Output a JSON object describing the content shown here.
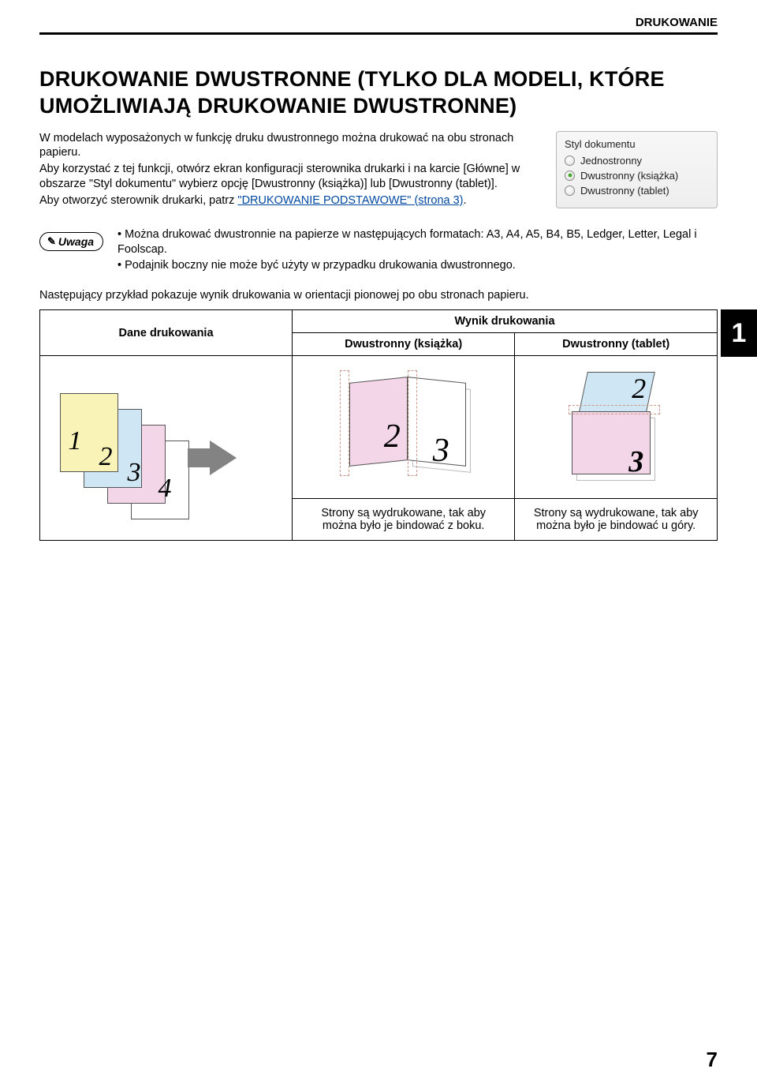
{
  "header": {
    "section": "DRUKOWANIE"
  },
  "title": "DRUKOWANIE DWUSTRONNE (TYLKO DLA MODELI, KTÓRE UMOŻLIWIAJĄ DRUKOWANIE DWUSTRONNE)",
  "intro": {
    "p1": "W modelach wyposażonych w funkcję druku dwustronnego można drukować na obu stronach papieru.",
    "p2": "Aby korzystać z tej funkcji, otwórz ekran konfiguracji sterownika drukarki i na karcie [Główne] w obszarze \"Styl dokumentu\" wybierz opcję [Dwustronny (książka)] lub [Dwustronny (tablet)].",
    "p3a": "Aby otworzyć sterownik drukarki, patrz ",
    "p3_link": "\"DRUKOWANIE PODSTAWOWE\" (strona 3)",
    "p3b": "."
  },
  "radio": {
    "title": "Styl dokumentu",
    "options": [
      "Jednostronny",
      "Dwustronny (książka)",
      "Dwustronny (tablet)"
    ],
    "selected_index": 1
  },
  "note": {
    "badge": "Uwaga",
    "items": [
      "Można drukować dwustronnie na papierze w następujących formatach: A3, A4, A5, B4, B5, Ledger, Letter, Legal i Foolscap.",
      "Podajnik boczny nie może być użyty w przypadku drukowania dwustronnego."
    ]
  },
  "side_tab": "1",
  "example": {
    "intro": "Następujący przykład pokazuje wynik drukowania w orientacji pionowej po obu stronach papieru.",
    "header_left": "Dane drukowania",
    "header_top": "Wynik drukowania",
    "header_col1": "Dwustronny (książka)",
    "header_col2": "Dwustronny (tablet)",
    "caption1": "Strony są wydrukowane, tak aby można było je bindować z boku.",
    "caption2": "Strony są wydrukowane, tak aby można było je bindować u góry."
  },
  "page_number": "7",
  "colors": {
    "page1": "#faf3b8",
    "page2": "#cfe7f5",
    "page3": "#f3d6e8",
    "page4": "#ffffff",
    "arrow": "#838383",
    "dash": "#c98866",
    "link": "#0048a0"
  }
}
